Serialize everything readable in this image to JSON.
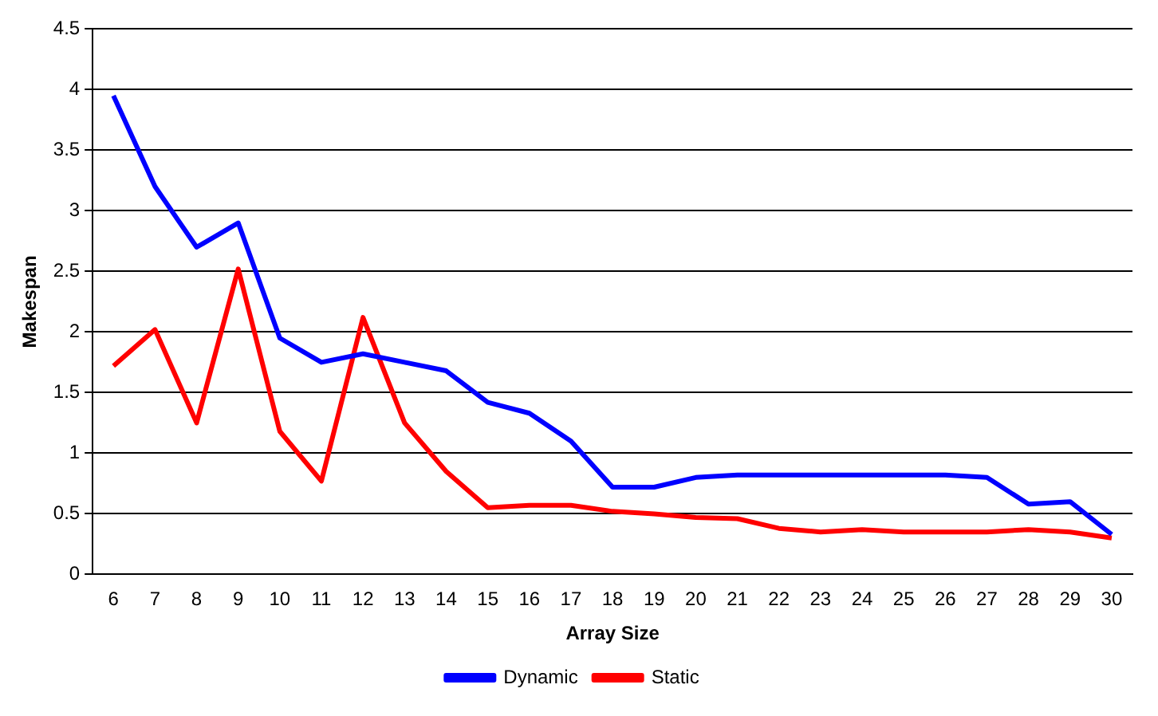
{
  "chart_data": {
    "type": "line",
    "xlabel": "Array Size",
    "ylabel": "Makespan",
    "categories": [
      "6",
      "7",
      "8",
      "9",
      "10",
      "11",
      "12",
      "13",
      "14",
      "15",
      "16",
      "17",
      "18",
      "19",
      "20",
      "21",
      "22",
      "23",
      "24",
      "25",
      "26",
      "27",
      "28",
      "29",
      "30"
    ],
    "series": [
      {
        "name": "Dynamic",
        "color": "#0000ff",
        "values": [
          3.95,
          3.2,
          2.7,
          2.9,
          1.95,
          1.75,
          1.82,
          1.75,
          1.68,
          1.42,
          1.33,
          1.1,
          0.72,
          0.72,
          0.8,
          0.82,
          0.82,
          0.82,
          0.82,
          0.82,
          0.82,
          0.8,
          0.58,
          0.6,
          0.33
        ]
      },
      {
        "name": "Static",
        "color": "#ff0000",
        "values": [
          1.72,
          2.02,
          1.25,
          2.52,
          1.18,
          0.77,
          2.12,
          1.25,
          0.85,
          0.55,
          0.57,
          0.57,
          0.52,
          0.5,
          0.47,
          0.46,
          0.38,
          0.35,
          0.37,
          0.35,
          0.35,
          0.35,
          0.37,
          0.35,
          0.3
        ]
      }
    ],
    "ylim": [
      0,
      4.5
    ],
    "yticks": [
      0,
      0.5,
      1,
      1.5,
      2,
      2.5,
      3,
      3.5,
      4,
      4.5
    ],
    "grid": "y",
    "legend": "bottom",
    "marker": "none",
    "line_style": "solid"
  }
}
